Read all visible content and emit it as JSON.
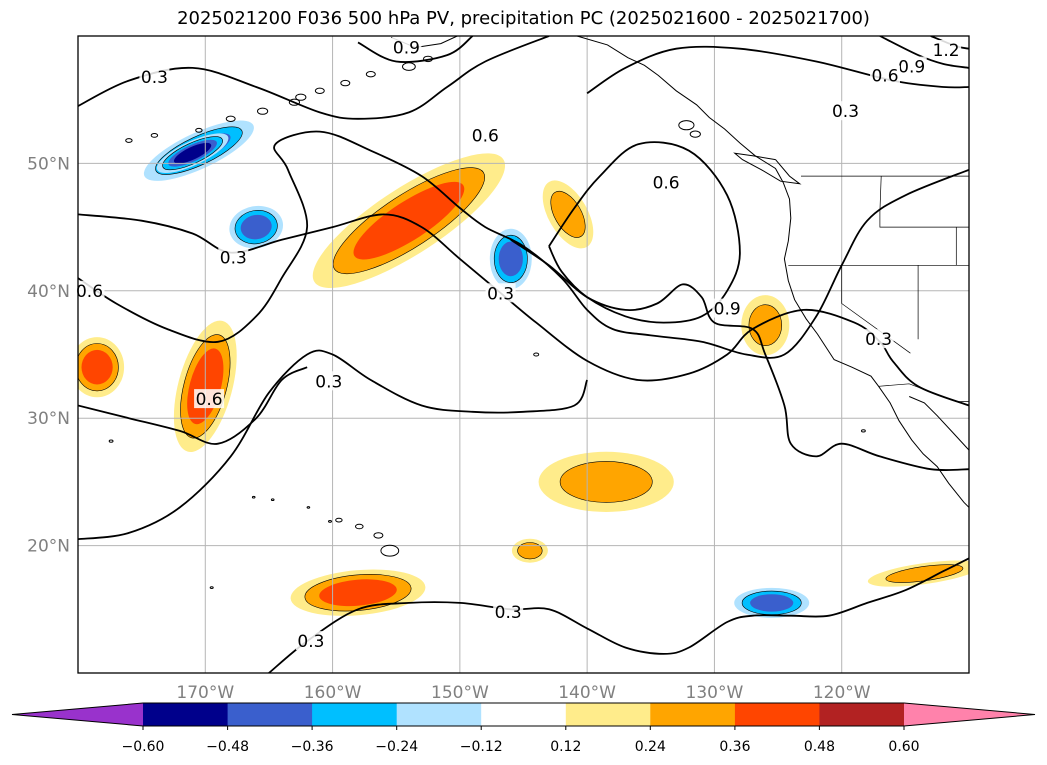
{
  "title": "2025021200 F036 500 hPa PV, precipitation PC (2025021600 - 2025021700)",
  "map": {
    "lon_range": [
      -180,
      -110
    ],
    "lat_range": [
      10,
      60
    ],
    "lon_ticks": [
      {
        "value": -170,
        "label": "170°W"
      },
      {
        "value": -160,
        "label": "160°W"
      },
      {
        "value": -150,
        "label": "150°W"
      },
      {
        "value": -140,
        "label": "140°W"
      },
      {
        "value": -130,
        "label": "130°W"
      },
      {
        "value": -120,
        "label": "120°W"
      }
    ],
    "lat_ticks": [
      {
        "value": 20,
        "label": "20°N"
      },
      {
        "value": 30,
        "label": "30°N"
      },
      {
        "value": 40,
        "label": "40°N"
      },
      {
        "value": 50,
        "label": "50°N"
      }
    ],
    "grid": true,
    "contour_labels": [
      {
        "text": "0.3",
        "lon": -174.0,
        "lat": 56.8
      },
      {
        "text": "0.9",
        "lon": -154.2,
        "lat": 59.1
      },
      {
        "text": "1.2",
        "lon": -111.8,
        "lat": 58.9
      },
      {
        "text": "0.9",
        "lon": -114.5,
        "lat": 57.6
      },
      {
        "text": "0.6",
        "lon": -116.6,
        "lat": 56.9
      },
      {
        "text": "0.3",
        "lon": -119.7,
        "lat": 54.1
      },
      {
        "text": "0.6",
        "lon": -148.0,
        "lat": 52.2
      },
      {
        "text": "0.6",
        "lon": -133.8,
        "lat": 48.5
      },
      {
        "text": "0.3",
        "lon": -167.8,
        "lat": 42.6
      },
      {
        "text": "0.3",
        "lon": -146.8,
        "lat": 39.8
      },
      {
        "text": "0.6",
        "lon": -179.1,
        "lat": 40.0
      },
      {
        "text": "0.9",
        "lon": -129.0,
        "lat": 38.6
      },
      {
        "text": "0.3",
        "lon": -117.1,
        "lat": 36.2
      },
      {
        "text": "0.3",
        "lon": -160.3,
        "lat": 32.9
      },
      {
        "text": "0.6",
        "lon": -169.7,
        "lat": 31.5
      },
      {
        "text": "0.3",
        "lon": -146.2,
        "lat": 14.8
      },
      {
        "text": "0.3",
        "lon": -161.7,
        "lat": 12.5
      }
    ],
    "precip_pc": [
      {
        "value": -0.36,
        "lon": -166.0,
        "lat": 45.0,
        "rx": 1.8,
        "ry": 1.4,
        "rot": -10
      },
      {
        "value": -0.36,
        "lon": -170.5,
        "lat": 51.0,
        "rx": 4.0,
        "ry": 1.2,
        "rot": -25
      },
      {
        "value": -0.36,
        "lon": -146.0,
        "lat": 42.5,
        "rx": 1.4,
        "ry": 2.0,
        "rot": 0
      },
      {
        "value": -0.36,
        "lon": -125.5,
        "lat": 15.5,
        "rx": 2.5,
        "ry": 1.0,
        "rot": 0
      },
      {
        "value": -0.48,
        "lon": -171.0,
        "lat": 50.8,
        "rx": 2.6,
        "ry": 0.8,
        "rot": -25
      },
      {
        "value": 0.36,
        "lon": -154.0,
        "lat": 45.5,
        "rx": 7.5,
        "ry": 2.2,
        "rot": -33
      },
      {
        "value": 0.36,
        "lon": -170.0,
        "lat": 32.5,
        "rx": 1.8,
        "ry": 4.5,
        "rot": 15
      },
      {
        "value": 0.36,
        "lon": -158.0,
        "lat": 16.3,
        "rx": 4.5,
        "ry": 1.5,
        "rot": -5
      },
      {
        "value": 0.36,
        "lon": -178.5,
        "lat": 34.0,
        "rx": 1.8,
        "ry": 2.0,
        "rot": 0
      },
      {
        "value": 0.24,
        "lon": -141.5,
        "lat": 46.0,
        "rx": 1.3,
        "ry": 2.5,
        "rot": -30
      },
      {
        "value": 0.24,
        "lon": -126.0,
        "lat": 37.3,
        "rx": 1.6,
        "ry": 2.0,
        "rot": 0
      },
      {
        "value": 0.24,
        "lon": -138.5,
        "lat": 25.0,
        "rx": 4.5,
        "ry": 2.0,
        "rot": 0
      },
      {
        "value": 0.24,
        "lon": -113.5,
        "lat": 17.8,
        "rx": 3.8,
        "ry": 0.7,
        "rot": -8
      },
      {
        "value": 0.24,
        "lon": -144.5,
        "lat": 19.6,
        "rx": 1.2,
        "ry": 0.8,
        "rot": 0
      }
    ],
    "pv_contours": {
      "0.3": [
        [
          [
            -180,
            54.5
          ],
          [
            -176,
            56.5
          ],
          [
            -171,
            57.5
          ],
          [
            -166,
            56
          ],
          [
            -161,
            54
          ],
          [
            -158,
            53.5
          ],
          [
            -154,
            54
          ],
          [
            -151,
            56
          ],
          [
            -148,
            58
          ],
          [
            -143,
            60
          ]
        ],
        [
          [
            -180,
            46
          ],
          [
            -175,
            45.5
          ],
          [
            -171,
            44.5
          ],
          [
            -168,
            43
          ],
          [
            -164,
            44
          ],
          [
            -160,
            45
          ],
          [
            -156,
            46
          ],
          [
            -153,
            45
          ],
          [
            -150,
            42.5
          ],
          [
            -147,
            40
          ],
          [
            -144,
            37.5
          ],
          [
            -140,
            34.5
          ],
          [
            -136,
            33
          ],
          [
            -132,
            33.5
          ],
          [
            -129,
            35
          ],
          [
            -127,
            37
          ],
          [
            -123,
            38.5
          ],
          [
            -119,
            37.5
          ],
          [
            -117,
            36
          ],
          [
            -116,
            34.5
          ],
          [
            -114,
            32.5
          ],
          [
            -110,
            31
          ]
        ],
        [
          [
            -180,
            20.5
          ],
          [
            -176,
            21
          ],
          [
            -172,
            23
          ],
          [
            -168,
            27
          ],
          [
            -165,
            32
          ],
          [
            -162,
            35
          ],
          [
            -160,
            35
          ],
          [
            -157,
            33
          ],
          [
            -153,
            31
          ],
          [
            -149,
            30.5
          ],
          [
            -145,
            30.5
          ],
          [
            -141,
            31
          ],
          [
            -140,
            33
          ]
        ],
        [
          [
            -165,
            10
          ],
          [
            -162,
            12.5
          ],
          [
            -158,
            15
          ],
          [
            -154,
            15.5
          ],
          [
            -150,
            15.5
          ],
          [
            -146,
            15
          ],
          [
            -143,
            15
          ],
          [
            -140,
            13.5
          ],
          [
            -137,
            12
          ],
          [
            -134,
            11.5
          ],
          [
            -132,
            12
          ],
          [
            -129,
            14
          ],
          [
            -127,
            14.5
          ],
          [
            -124,
            14.5
          ],
          [
            -121,
            14.5
          ],
          [
            -118,
            15.5
          ],
          [
            -115,
            16.5
          ],
          [
            -112,
            18
          ],
          [
            -110,
            19
          ]
        ]
      ],
      "0.6": [
        [
          [
            -180,
            41
          ],
          [
            -177,
            39
          ],
          [
            -173,
            37
          ],
          [
            -169,
            36
          ],
          [
            -166,
            38
          ],
          [
            -164,
            41
          ],
          [
            -162,
            45
          ],
          [
            -163.5,
            49.5
          ],
          [
            -164.5,
            51.5
          ],
          [
            -161,
            52.5
          ],
          [
            -157,
            51
          ],
          [
            -153,
            49
          ],
          [
            -150,
            46.5
          ],
          [
            -148,
            45
          ],
          [
            -145,
            43.5
          ],
          [
            -142,
            41
          ],
          [
            -140,
            38.5
          ],
          [
            -138,
            37
          ],
          [
            -135,
            36.5
          ],
          [
            -131,
            36
          ],
          [
            -127.5,
            35
          ],
          [
            -124.5,
            35
          ],
          [
            -122,
            38
          ],
          [
            -120,
            42
          ],
          [
            -118,
            45.5
          ],
          [
            -115,
            47.5
          ],
          [
            -110,
            49.5
          ]
        ],
        [
          [
            -180,
            31
          ],
          [
            -176,
            30
          ],
          [
            -172,
            29
          ],
          [
            -169,
            28
          ],
          [
            -166,
            30
          ],
          [
            -164,
            33
          ],
          [
            -162,
            34
          ]
        ],
        [
          [
            -143,
            43.5
          ],
          [
            -142,
            41.5
          ],
          [
            -140,
            39.5
          ],
          [
            -137,
            38
          ],
          [
            -134,
            37.5
          ],
          [
            -131,
            38
          ],
          [
            -129,
            40
          ],
          [
            -128,
            43
          ],
          [
            -129,
            47.5
          ],
          [
            -132,
            51
          ],
          [
            -136,
            51.5
          ],
          [
            -139,
            49
          ],
          [
            -141,
            46.5
          ],
          [
            -143,
            43.5
          ]
        ],
        [
          [
            -140,
            55.5
          ],
          [
            -137,
            57.5
          ],
          [
            -133,
            59
          ],
          [
            -128,
            59
          ],
          [
            -122,
            58
          ],
          [
            -116,
            56.5
          ],
          [
            -112,
            56
          ],
          [
            -110,
            56
          ]
        ]
      ],
      "0.9": [
        [
          [
            -146,
            44
          ],
          [
            -143,
            42
          ],
          [
            -140,
            39.5
          ],
          [
            -137,
            38.5
          ],
          [
            -134.5,
            39
          ],
          [
            -132.5,
            40.5
          ],
          [
            -131,
            39.5
          ],
          [
            -130,
            37.5
          ],
          [
            -127,
            37
          ],
          [
            -126,
            35
          ],
          [
            -124.5,
            31
          ],
          [
            -124,
            28
          ],
          [
            -122,
            27
          ],
          [
            -120,
            28
          ],
          [
            -117,
            27
          ],
          [
            -113,
            26
          ],
          [
            -110,
            26
          ]
        ],
        [
          [
            -158,
            59.5
          ],
          [
            -155,
            58
          ],
          [
            -151,
            58.5
          ],
          [
            -149,
            60
          ]
        ],
        [
          [
            -117,
            60
          ],
          [
            -114,
            58.5
          ],
          [
            -112,
            57.8
          ],
          [
            -110,
            57.5
          ]
        ]
      ],
      "1.2": [
        [
          [
            -113,
            60
          ],
          [
            -111,
            59.2
          ],
          [
            -110,
            59
          ]
        ]
      ]
    },
    "coastline": [
      [
        [
          -155.4,
          59.9
        ],
        [
          -153.5,
          59.1
        ],
        [
          -151.5,
          59.4
        ],
        [
          -150.2,
          60
        ]
      ],
      [
        [
          -140.8,
          60
        ],
        [
          -138.4,
          59.3
        ],
        [
          -136.8,
          58.3
        ],
        [
          -135.5,
          57.7
        ],
        [
          -134.4,
          56.9
        ],
        [
          -133,
          55.7
        ],
        [
          -131.4,
          54.6
        ],
        [
          -130.4,
          53.6
        ],
        [
          -129.2,
          52.7
        ],
        [
          -128,
          51.6
        ],
        [
          -126.8,
          50.6
        ],
        [
          -125.2,
          49.6
        ],
        [
          -124.6,
          48.5
        ],
        [
          -124.1,
          47.2
        ],
        [
          -124,
          45.7
        ],
        [
          -124.2,
          43.9
        ],
        [
          -124.5,
          42.5
        ],
        [
          -124.2,
          40.8
        ],
        [
          -123.7,
          39.3
        ],
        [
          -122.8,
          37.8
        ],
        [
          -121.9,
          36.6
        ],
        [
          -120.6,
          34.6
        ],
        [
          -119.2,
          34
        ],
        [
          -117.7,
          33.3
        ],
        [
          -117.1,
          32.5
        ],
        [
          -116.2,
          31.2
        ],
        [
          -115.5,
          29.8
        ],
        [
          -114.5,
          28.3
        ],
        [
          -113.6,
          27.2
        ],
        [
          -112.5,
          26.2
        ],
        [
          -111.6,
          24.9
        ],
        [
          -110.4,
          23.4
        ],
        [
          -110,
          23
        ]
      ],
      [
        [
          -110,
          27.5
        ],
        [
          -111.2,
          28.8
        ],
        [
          -112.5,
          30.2
        ],
        [
          -113.5,
          31.2
        ],
        [
          -114.7,
          31.7
        ]
      ],
      [
        [
          -125.2,
          50.3
        ],
        [
          -124.1,
          49
        ],
        [
          -123.3,
          48.4
        ],
        [
          -124.8,
          48.6
        ],
        [
          -126.3,
          49.5
        ],
        [
          -127.8,
          50.3
        ],
        [
          -128.4,
          50.8
        ],
        [
          -127,
          50.6
        ],
        [
          -125.2,
          50.3
        ]
      ]
    ],
    "borders": [
      [
        [
          -123.2,
          49
        ],
        [
          -110,
          49
        ]
      ],
      [
        [
          -124.2,
          42
        ],
        [
          -110,
          42
        ]
      ],
      [
        [
          -120,
          42
        ],
        [
          -120,
          39
        ],
        [
          -114.6,
          35.1
        ]
      ],
      [
        [
          -117.1,
          32.5
        ],
        [
          -114.7,
          32.7
        ],
        [
          -111,
          31.3
        ],
        [
          -110,
          31.3
        ]
      ],
      [
        [
          -110,
          45
        ],
        [
          -117,
          45
        ],
        [
          -117,
          46.2
        ],
        [
          -116.9,
          49
        ]
      ],
      [
        [
          -114,
          42
        ],
        [
          -114,
          36.2
        ]
      ],
      [
        [
          -111,
          42
        ],
        [
          -111,
          45
        ]
      ]
    ],
    "islands": [
      {
        "lon": -155.5,
        "lat": 19.6,
        "r": 0.7
      },
      {
        "lon": -156.4,
        "lat": 20.8,
        "r": 0.35
      },
      {
        "lon": -157.9,
        "lat": 21.5,
        "r": 0.3
      },
      {
        "lon": -159.5,
        "lat": 22.0,
        "r": 0.25
      },
      {
        "lon": -160.2,
        "lat": 21.9,
        "r": 0.12
      },
      {
        "lon": -161.9,
        "lat": 23.0,
        "r": 0.1
      },
      {
        "lon": -164.7,
        "lat": 23.6,
        "r": 0.1
      },
      {
        "lon": -166.2,
        "lat": 23.8,
        "r": 0.1
      },
      {
        "lon": -118.3,
        "lat": 29.0,
        "r": 0.15
      },
      {
        "lon": -144,
        "lat": 35,
        "r": 0.2
      },
      {
        "lon": -176,
        "lat": 51.8,
        "r": 0.25
      },
      {
        "lon": -174,
        "lat": 52.2,
        "r": 0.25
      },
      {
        "lon": -170.5,
        "lat": 52.6,
        "r": 0.25
      },
      {
        "lon": -168,
        "lat": 53.5,
        "r": 0.35
      },
      {
        "lon": -165.5,
        "lat": 54.1,
        "r": 0.4
      },
      {
        "lon": -163,
        "lat": 54.8,
        "r": 0.4
      },
      {
        "lon": -162.5,
        "lat": 55.2,
        "r": 0.4
      },
      {
        "lon": -161,
        "lat": 55.7,
        "r": 0.35
      },
      {
        "lon": -159,
        "lat": 56.3,
        "r": 0.35
      },
      {
        "lon": -157,
        "lat": 57.0,
        "r": 0.35
      },
      {
        "lon": -154,
        "lat": 57.6,
        "r": 0.5
      },
      {
        "lon": -152.5,
        "lat": 58.2,
        "r": 0.35
      },
      {
        "lon": -132.2,
        "lat": 53.0,
        "r": 0.6
      },
      {
        "lon": -131.5,
        "lat": 52.3,
        "r": 0.4
      },
      {
        "lon": -177.4,
        "lat": 28.2,
        "r": 0.15
      },
      {
        "lon": -169.5,
        "lat": 16.7,
        "r": 0.12
      }
    ]
  },
  "colorbar": {
    "ticks": [
      "−0.60",
      "−0.48",
      "−0.36",
      "−0.24",
      "−0.12",
      "0.12",
      "0.24",
      "0.36",
      "0.48",
      "0.60"
    ],
    "levels": [
      -0.6,
      -0.48,
      -0.36,
      -0.24,
      -0.12,
      0.12,
      0.24,
      0.36,
      0.48,
      0.6
    ],
    "colors": [
      "#9932cc",
      "#00008b",
      "#3a5fcd",
      "#00bfff",
      "#b0e2ff",
      "#ffffff",
      "#ffec8b",
      "#ffa500",
      "#ff4500",
      "#b22222",
      "#ff82ab"
    ]
  }
}
